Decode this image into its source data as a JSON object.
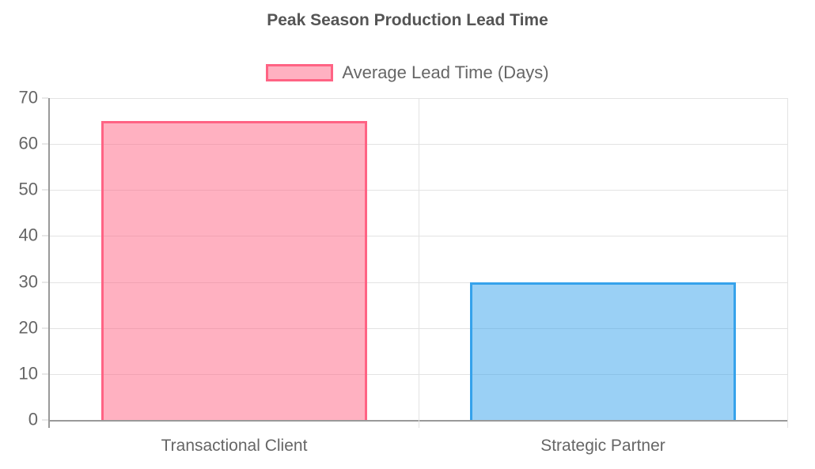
{
  "chart_data": {
    "type": "bar",
    "title": "Peak Season Production Lead Time",
    "legend": [
      {
        "label": "Average Lead Time (Days)",
        "fill": "#ff638480",
        "border": "#ff6384"
      }
    ],
    "categories": [
      "Transactional Client",
      "Strategic Partner"
    ],
    "values": [
      65,
      30
    ],
    "bar_colors": [
      {
        "fill": "#ff638480",
        "border": "#ff6384"
      },
      {
        "fill": "#36a2eb80",
        "border": "#36a2eb"
      }
    ],
    "xlabel": "",
    "ylabel": "",
    "ylim": [
      0,
      70
    ],
    "yticks": [
      0,
      10,
      20,
      30,
      40,
      50,
      60,
      70
    ],
    "grid": true,
    "legend_position": "top",
    "colors": {
      "title_text": "#555555",
      "axis_text": "#666666",
      "grid_line": "#e3e3e3",
      "axis_line": "#999999",
      "background": "#ffffff"
    }
  }
}
